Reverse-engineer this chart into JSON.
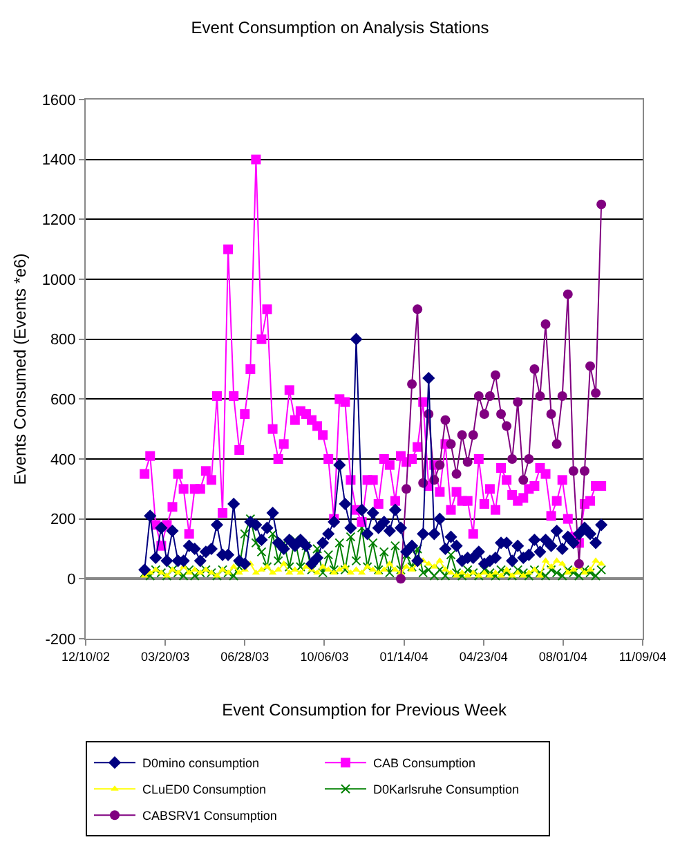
{
  "chart_data": {
    "type": "line",
    "title": "Event Consumption on Analysis Stations",
    "xlabel": "Event Consumption for Previous Week",
    "ylabel": "Events Consumed (Events *e6)",
    "x": [
      "2003-02-22",
      "2003-03-01",
      "2003-03-08",
      "2003-03-15",
      "2003-03-22",
      "2003-03-29",
      "2003-04-05",
      "2003-04-12",
      "2003-04-19",
      "2003-04-26",
      "2003-05-03",
      "2003-05-10",
      "2003-05-17",
      "2003-05-24",
      "2003-05-31",
      "2003-06-07",
      "2003-06-14",
      "2003-06-21",
      "2003-06-28",
      "2003-07-05",
      "2003-07-12",
      "2003-07-19",
      "2003-07-26",
      "2003-08-02",
      "2003-08-09",
      "2003-08-16",
      "2003-08-23",
      "2003-08-30",
      "2003-09-06",
      "2003-09-13",
      "2003-09-20",
      "2003-09-27",
      "2003-10-04",
      "2003-10-11",
      "2003-10-18",
      "2003-10-25",
      "2003-11-01",
      "2003-11-08",
      "2003-11-15",
      "2003-11-22",
      "2003-11-29",
      "2003-12-06",
      "2003-12-13",
      "2003-12-20",
      "2003-12-27",
      "2004-01-03",
      "2004-01-10",
      "2004-01-17",
      "2004-01-24",
      "2004-01-31",
      "2004-02-07",
      "2004-02-14",
      "2004-02-21",
      "2004-02-28",
      "2004-03-06",
      "2004-03-13",
      "2004-03-20",
      "2004-03-27",
      "2004-04-03",
      "2004-04-10",
      "2004-04-17",
      "2004-04-24",
      "2004-05-01",
      "2004-05-08",
      "2004-05-15",
      "2004-05-22",
      "2004-05-29",
      "2004-06-05",
      "2004-06-12",
      "2004-06-19",
      "2004-06-26",
      "2004-07-03",
      "2004-07-10",
      "2004-07-17",
      "2004-07-24",
      "2004-07-31",
      "2004-08-07",
      "2004-08-14",
      "2004-08-21",
      "2004-08-28",
      "2004-09-04",
      "2004-09-11",
      "2004-09-18"
    ],
    "series": [
      {
        "name": "D0mino consumption",
        "color": "#000080",
        "marker": "diamond",
        "values": [
          30,
          210,
          70,
          170,
          60,
          160,
          60,
          60,
          110,
          100,
          60,
          90,
          100,
          180,
          80,
          80,
          250,
          60,
          50,
          190,
          180,
          130,
          170,
          220,
          120,
          100,
          130,
          110,
          130,
          110,
          50,
          70,
          120,
          150,
          190,
          380,
          250,
          170,
          800,
          230,
          150,
          220,
          170,
          190,
          160,
          230,
          170,
          90,
          110,
          60,
          150,
          670,
          150,
          200,
          100,
          140,
          110,
          60,
          70,
          70,
          90,
          50,
          60,
          70,
          120,
          120,
          60,
          110,
          70,
          80,
          130,
          90,
          130,
          110,
          160,
          100,
          140,
          120,
          150,
          170,
          150,
          120,
          180
        ]
      },
      {
        "name": "CAB Consumption",
        "color": "#ff00ff",
        "marker": "square",
        "values": [
          350,
          410,
          180,
          110,
          180,
          240,
          350,
          300,
          150,
          300,
          300,
          360,
          330,
          610,
          220,
          1100,
          610,
          430,
          550,
          700,
          1400,
          800,
          900,
          500,
          400,
          450,
          630,
          530,
          560,
          550,
          530,
          510,
          480,
          400,
          200,
          600,
          590,
          330,
          230,
          190,
          330,
          330,
          250,
          400,
          380,
          260,
          410,
          390,
          400,
          440,
          590,
          310,
          380,
          290,
          450,
          230,
          290,
          260,
          260,
          150,
          400,
          250,
          300,
          230,
          370,
          330,
          280,
          260,
          270,
          300,
          310,
          370,
          350,
          210,
          260,
          330,
          200,
          140,
          120,
          250,
          260,
          310,
          310
        ]
      },
      {
        "name": "CLuED0 Consumption",
        "color": "#ffff00",
        "marker": "triangle",
        "values": [
          10,
          20,
          30,
          20,
          10,
          30,
          20,
          40,
          20,
          30,
          20,
          30,
          20,
          10,
          30,
          20,
          40,
          20,
          30,
          50,
          20,
          30,
          40,
          20,
          30,
          50,
          20,
          30,
          20,
          40,
          30,
          20,
          40,
          30,
          20,
          30,
          40,
          20,
          30,
          20,
          40,
          30,
          20,
          30,
          50,
          30,
          20,
          40,
          30,
          50,
          60,
          50,
          40,
          60,
          30,
          20,
          10,
          20,
          10,
          20,
          10,
          20,
          10,
          20,
          10,
          30,
          10,
          20,
          10,
          20,
          30,
          10,
          60,
          40,
          60,
          50,
          20,
          30,
          40,
          20,
          30,
          60,
          50
        ]
      },
      {
        "name": "D0Karlsruhe Consumption",
        "color": "#008000",
        "marker": "cross",
        "values": [
          20,
          10,
          30,
          20,
          10,
          30,
          20,
          10,
          30,
          10,
          20,
          30,
          20,
          10,
          30,
          20,
          10,
          40,
          150,
          200,
          120,
          90,
          40,
          150,
          60,
          120,
          40,
          130,
          40,
          110,
          30,
          100,
          20,
          80,
          30,
          120,
          30,
          140,
          60,
          170,
          40,
          120,
          30,
          90,
          20,
          110,
          30,
          80,
          40,
          100,
          20,
          30,
          10,
          30,
          10,
          80,
          20,
          10,
          30,
          20,
          10,
          30,
          20,
          10,
          30,
          20,
          10,
          30,
          20,
          10,
          30,
          20,
          10,
          30,
          20,
          10,
          30,
          20,
          10,
          30,
          20,
          10,
          30
        ]
      },
      {
        "name": "CABSRV1 Consumption",
        "color": "#800080",
        "marker": "circle",
        "values": [
          null,
          null,
          null,
          null,
          null,
          null,
          null,
          null,
          null,
          null,
          null,
          null,
          null,
          null,
          null,
          null,
          null,
          null,
          null,
          null,
          null,
          null,
          null,
          null,
          null,
          null,
          null,
          null,
          null,
          null,
          null,
          null,
          null,
          null,
          null,
          null,
          null,
          null,
          null,
          null,
          null,
          null,
          null,
          null,
          null,
          null,
          0,
          300,
          650,
          900,
          320,
          550,
          330,
          380,
          530,
          450,
          350,
          480,
          390,
          480,
          610,
          550,
          610,
          680,
          550,
          510,
          400,
          590,
          330,
          400,
          700,
          610,
          850,
          550,
          450,
          610,
          950,
          360,
          50,
          360,
          710,
          620,
          1250
        ]
      }
    ],
    "xlim": [
      "2002-12-10",
      "2004-11-09"
    ],
    "xticks": [
      {
        "value": "2002-12-10",
        "label": "12/10/02"
      },
      {
        "value": "2003-03-20",
        "label": "03/20/03"
      },
      {
        "value": "2003-06-28",
        "label": "06/28/03"
      },
      {
        "value": "2003-10-06",
        "label": "10/06/03"
      },
      {
        "value": "2004-01-14",
        "label": "01/14/04"
      },
      {
        "value": "2004-04-23",
        "label": "04/23/04"
      },
      {
        "value": "2004-08-01",
        "label": "08/01/04"
      },
      {
        "value": "2004-11-09",
        "label": "11/09/04"
      }
    ],
    "ylim": [
      -200,
      1600
    ],
    "yticks": [
      -200,
      0,
      200,
      400,
      600,
      800,
      1000,
      1200,
      1400,
      1600
    ],
    "grid": "y",
    "legend": "bottom"
  }
}
